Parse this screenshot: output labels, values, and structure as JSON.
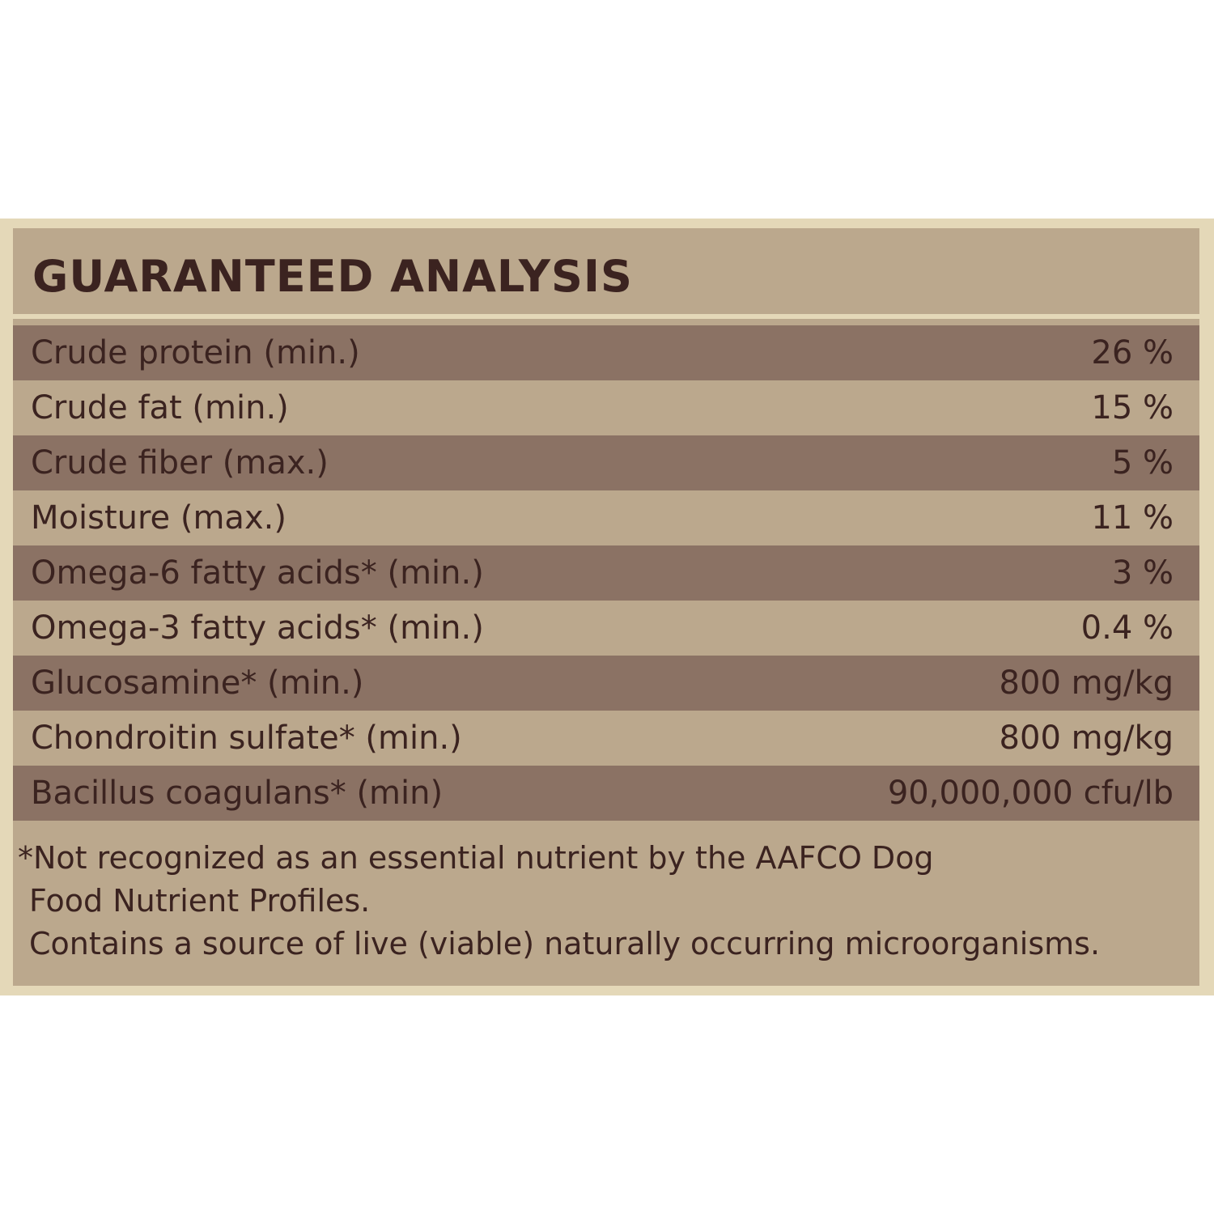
{
  "panel": {
    "title": "GUARANTEED ANALYSIS",
    "table": {
      "rows": [
        [
          "Crude protein (min.)",
          "26 %"
        ],
        [
          "Crude fat (min.)",
          "15 %"
        ],
        [
          "Crude fiber (max.)",
          "5 %"
        ],
        [
          "Moisture (max.)",
          "11 %"
        ],
        [
          "Omega-6 fatty acids* (min.)",
          "3 %"
        ],
        [
          "Omega-3 fatty acids* (min.)",
          "0.4 %"
        ],
        [
          "Glucosamine* (min.)",
          "800 mg/kg"
        ],
        [
          "Chondroitin sulfate* (min.)",
          "800 mg/kg"
        ],
        [
          "Bacillus coagulans* (min)",
          "90,000,000 cfu/lb"
        ]
      ]
    },
    "footnotes": [
      "*Not recognized as an essential nutrient by the AAFCO Dog",
      "Food Nutrient Profiles.",
      "Contains a source of live (viable) naturally occurring microorganisms."
    ]
  }
}
